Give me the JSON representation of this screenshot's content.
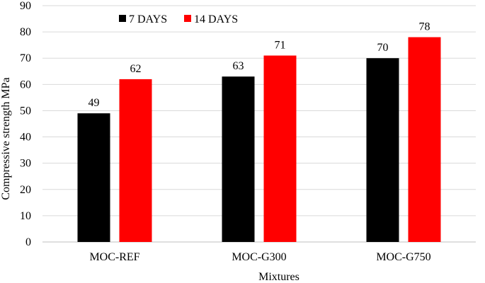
{
  "chart_data": {
    "type": "bar",
    "title": "",
    "xlabel": "Mixtures",
    "ylabel": "Compressive strength MPa",
    "categories": [
      "MOC-REF",
      "MOC-G300",
      "MOC-G750"
    ],
    "series": [
      {
        "name": "7 DAYS",
        "color": "#000000",
        "values": [
          49,
          63,
          70
        ],
        "labels": [
          "49",
          "63",
          "70"
        ]
      },
      {
        "name": "14 DAYS",
        "color": "#ff0000",
        "values": [
          62,
          71,
          78
        ],
        "labels": [
          "62",
          "71",
          "78"
        ]
      }
    ],
    "ylim": [
      0,
      90
    ],
    "yticks": [
      0,
      10,
      20,
      30,
      40,
      50,
      60,
      70,
      80,
      90
    ],
    "ytick_labels": [
      "0",
      "10",
      "20",
      "30",
      "40",
      "50",
      "60",
      "70",
      "80",
      "90"
    ],
    "grid": true,
    "legend": "top-left"
  }
}
